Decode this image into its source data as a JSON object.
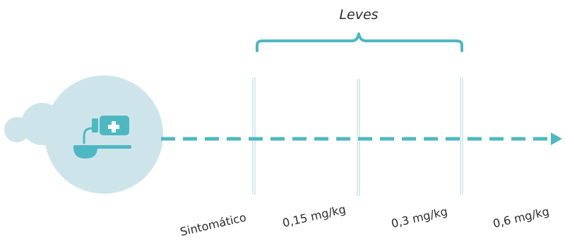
{
  "diagram": {
    "bracket_label": "Leves",
    "markers": [
      {
        "label": "Sintomático"
      },
      {
        "label": "0,15 mg/kg"
      },
      {
        "label": "0,3 mg/kg"
      },
      {
        "label": "0,6 mg/kg"
      }
    ],
    "icon": "medicine-bottle-spoon-icon",
    "colors": {
      "accent": "#4db8c2",
      "circle": "#cde5ea",
      "tick_line": "#cfe7ea",
      "text": "#2b2b2b"
    }
  }
}
